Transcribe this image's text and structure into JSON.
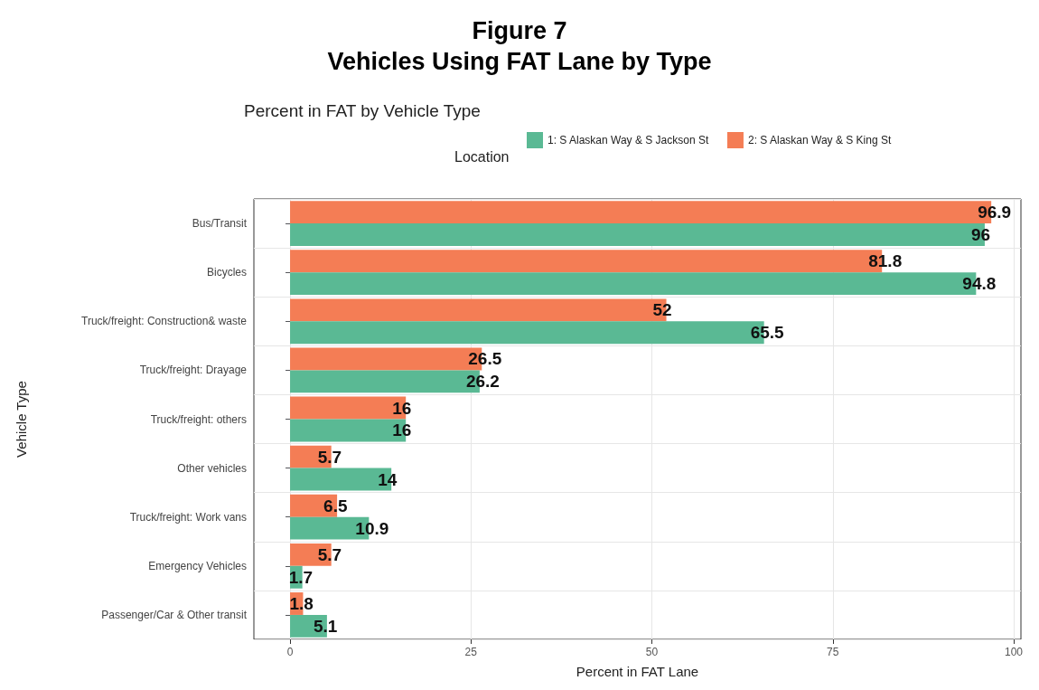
{
  "chart_data": {
    "type": "bar",
    "orientation": "horizontal",
    "title": "Figure 7\nVehicles Using FAT Lane by Type",
    "subtitle": "Percent in FAT by Vehicle Type",
    "xlabel": "Percent in FAT Lane",
    "ylabel": "Vehicle Type",
    "legend_title": "Location",
    "legend": "top",
    "grid": true,
    "data_labels": true,
    "categories": [
      "Bus/Transit",
      "Bicycles",
      "Truck/freight: Construction& waste",
      "Truck/freight: Drayage",
      "Truck/freight: others",
      "Other vehicles",
      "Truck/freight: Work vans",
      "Emergency Vehicles",
      "Passenger/Car & Other transit"
    ],
    "series": [
      {
        "name": "1: S Alaskan Way & S Jackson St",
        "color": "#5ab994",
        "values": [
          96,
          94.8,
          65.5,
          26.2,
          16,
          14,
          10.9,
          1.7,
          5.1
        ]
      },
      {
        "name": "2: S Alaskan Way & S King St",
        "color": "#f47d55",
        "values": [
          96.9,
          81.8,
          52,
          26.5,
          16,
          5.7,
          6.5,
          5.7,
          1.8
        ]
      }
    ],
    "xlim": [
      -5,
      101
    ],
    "xticks": [
      0,
      25,
      50,
      75,
      100
    ]
  }
}
